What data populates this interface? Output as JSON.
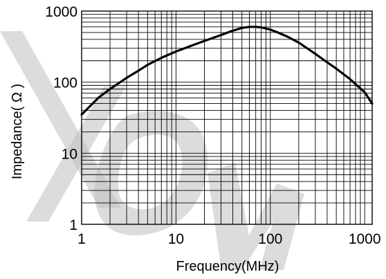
{
  "chart_data": {
    "type": "line",
    "xlabel": "Frequency(MHz)",
    "ylabel": "Impedance( Ω )",
    "xscale": "log",
    "yscale": "log",
    "xlim": [
      1,
      1200
    ],
    "ylim": [
      1,
      1000
    ],
    "grid": true,
    "x_ticks": [
      {
        "value": 1,
        "label": "1"
      },
      {
        "value": 10,
        "label": "10"
      },
      {
        "value": 100,
        "label": "100"
      },
      {
        "value": 1000,
        "label": "1000"
      }
    ],
    "y_ticks": [
      {
        "value": 1,
        "label": "1"
      },
      {
        "value": 10,
        "label": "10"
      },
      {
        "value": 100,
        "label": "100"
      },
      {
        "value": 1000,
        "label": "1000"
      }
    ],
    "series": [
      {
        "color": "#000000",
        "x": [
          1,
          1.5,
          2,
          3,
          4,
          5,
          7,
          10,
          15,
          20,
          30,
          40,
          50,
          60,
          70,
          80,
          100,
          120,
          150,
          200,
          300,
          400,
          500,
          700,
          1000,
          1200
        ],
        "y": [
          35,
          60,
          80,
          115,
          145,
          175,
          220,
          270,
          330,
          380,
          460,
          530,
          580,
          600,
          600,
          590,
          550,
          500,
          440,
          360,
          250,
          190,
          155,
          110,
          72,
          50
        ]
      }
    ]
  }
}
